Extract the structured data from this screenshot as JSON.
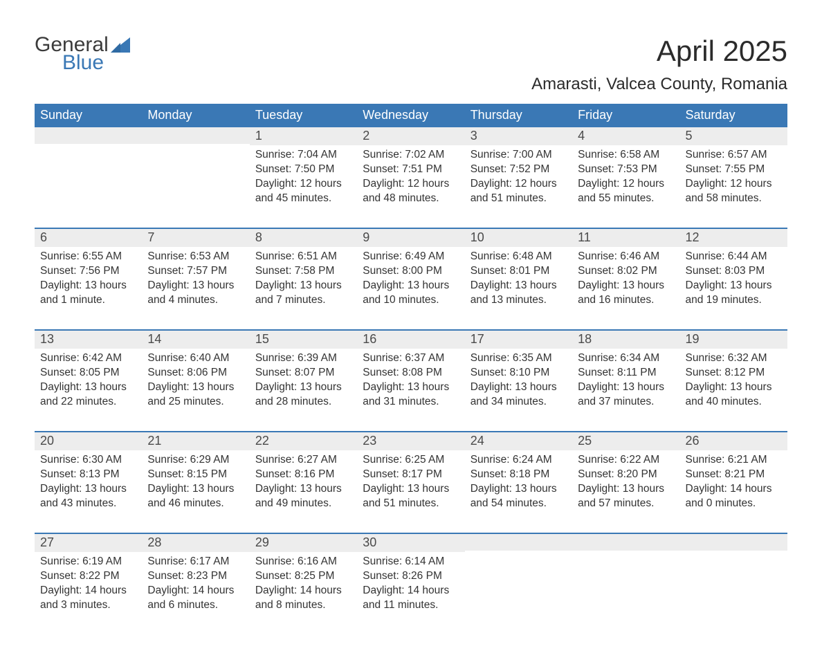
{
  "logo": {
    "word1": "General",
    "word2": "Blue",
    "color1": "#3b3b3b",
    "color2": "#3a78b5"
  },
  "title": "April 2025",
  "location": "Amarasti, Valcea County, Romania",
  "colors": {
    "header_bg": "#3a78b5",
    "header_text": "#ffffff",
    "daynum_bg": "#ededed",
    "daynum_text": "#4a4a4a",
    "body_text": "#333333",
    "row_border": "#3a78b5",
    "page_bg": "#ffffff"
  },
  "day_headers": [
    "Sunday",
    "Monday",
    "Tuesday",
    "Wednesday",
    "Thursday",
    "Friday",
    "Saturday"
  ],
  "weeks": [
    [
      {
        "day": "",
        "sunrise": "",
        "sunset": "",
        "daylight1": "",
        "daylight2": "",
        "empty": true
      },
      {
        "day": "",
        "sunrise": "",
        "sunset": "",
        "daylight1": "",
        "daylight2": "",
        "empty": true
      },
      {
        "day": "1",
        "sunrise": "Sunrise: 7:04 AM",
        "sunset": "Sunset: 7:50 PM",
        "daylight1": "Daylight: 12 hours",
        "daylight2": "and 45 minutes."
      },
      {
        "day": "2",
        "sunrise": "Sunrise: 7:02 AM",
        "sunset": "Sunset: 7:51 PM",
        "daylight1": "Daylight: 12 hours",
        "daylight2": "and 48 minutes."
      },
      {
        "day": "3",
        "sunrise": "Sunrise: 7:00 AM",
        "sunset": "Sunset: 7:52 PM",
        "daylight1": "Daylight: 12 hours",
        "daylight2": "and 51 minutes."
      },
      {
        "day": "4",
        "sunrise": "Sunrise: 6:58 AM",
        "sunset": "Sunset: 7:53 PM",
        "daylight1": "Daylight: 12 hours",
        "daylight2": "and 55 minutes."
      },
      {
        "day": "5",
        "sunrise": "Sunrise: 6:57 AM",
        "sunset": "Sunset: 7:55 PM",
        "daylight1": "Daylight: 12 hours",
        "daylight2": "and 58 minutes."
      }
    ],
    [
      {
        "day": "6",
        "sunrise": "Sunrise: 6:55 AM",
        "sunset": "Sunset: 7:56 PM",
        "daylight1": "Daylight: 13 hours",
        "daylight2": "and 1 minute."
      },
      {
        "day": "7",
        "sunrise": "Sunrise: 6:53 AM",
        "sunset": "Sunset: 7:57 PM",
        "daylight1": "Daylight: 13 hours",
        "daylight2": "and 4 minutes."
      },
      {
        "day": "8",
        "sunrise": "Sunrise: 6:51 AM",
        "sunset": "Sunset: 7:58 PM",
        "daylight1": "Daylight: 13 hours",
        "daylight2": "and 7 minutes."
      },
      {
        "day": "9",
        "sunrise": "Sunrise: 6:49 AM",
        "sunset": "Sunset: 8:00 PM",
        "daylight1": "Daylight: 13 hours",
        "daylight2": "and 10 minutes."
      },
      {
        "day": "10",
        "sunrise": "Sunrise: 6:48 AM",
        "sunset": "Sunset: 8:01 PM",
        "daylight1": "Daylight: 13 hours",
        "daylight2": "and 13 minutes."
      },
      {
        "day": "11",
        "sunrise": "Sunrise: 6:46 AM",
        "sunset": "Sunset: 8:02 PM",
        "daylight1": "Daylight: 13 hours",
        "daylight2": "and 16 minutes."
      },
      {
        "day": "12",
        "sunrise": "Sunrise: 6:44 AM",
        "sunset": "Sunset: 8:03 PM",
        "daylight1": "Daylight: 13 hours",
        "daylight2": "and 19 minutes."
      }
    ],
    [
      {
        "day": "13",
        "sunrise": "Sunrise: 6:42 AM",
        "sunset": "Sunset: 8:05 PM",
        "daylight1": "Daylight: 13 hours",
        "daylight2": "and 22 minutes."
      },
      {
        "day": "14",
        "sunrise": "Sunrise: 6:40 AM",
        "sunset": "Sunset: 8:06 PM",
        "daylight1": "Daylight: 13 hours",
        "daylight2": "and 25 minutes."
      },
      {
        "day": "15",
        "sunrise": "Sunrise: 6:39 AM",
        "sunset": "Sunset: 8:07 PM",
        "daylight1": "Daylight: 13 hours",
        "daylight2": "and 28 minutes."
      },
      {
        "day": "16",
        "sunrise": "Sunrise: 6:37 AM",
        "sunset": "Sunset: 8:08 PM",
        "daylight1": "Daylight: 13 hours",
        "daylight2": "and 31 minutes."
      },
      {
        "day": "17",
        "sunrise": "Sunrise: 6:35 AM",
        "sunset": "Sunset: 8:10 PM",
        "daylight1": "Daylight: 13 hours",
        "daylight2": "and 34 minutes."
      },
      {
        "day": "18",
        "sunrise": "Sunrise: 6:34 AM",
        "sunset": "Sunset: 8:11 PM",
        "daylight1": "Daylight: 13 hours",
        "daylight2": "and 37 minutes."
      },
      {
        "day": "19",
        "sunrise": "Sunrise: 6:32 AM",
        "sunset": "Sunset: 8:12 PM",
        "daylight1": "Daylight: 13 hours",
        "daylight2": "and 40 minutes."
      }
    ],
    [
      {
        "day": "20",
        "sunrise": "Sunrise: 6:30 AM",
        "sunset": "Sunset: 8:13 PM",
        "daylight1": "Daylight: 13 hours",
        "daylight2": "and 43 minutes."
      },
      {
        "day": "21",
        "sunrise": "Sunrise: 6:29 AM",
        "sunset": "Sunset: 8:15 PM",
        "daylight1": "Daylight: 13 hours",
        "daylight2": "and 46 minutes."
      },
      {
        "day": "22",
        "sunrise": "Sunrise: 6:27 AM",
        "sunset": "Sunset: 8:16 PM",
        "daylight1": "Daylight: 13 hours",
        "daylight2": "and 49 minutes."
      },
      {
        "day": "23",
        "sunrise": "Sunrise: 6:25 AM",
        "sunset": "Sunset: 8:17 PM",
        "daylight1": "Daylight: 13 hours",
        "daylight2": "and 51 minutes."
      },
      {
        "day": "24",
        "sunrise": "Sunrise: 6:24 AM",
        "sunset": "Sunset: 8:18 PM",
        "daylight1": "Daylight: 13 hours",
        "daylight2": "and 54 minutes."
      },
      {
        "day": "25",
        "sunrise": "Sunrise: 6:22 AM",
        "sunset": "Sunset: 8:20 PM",
        "daylight1": "Daylight: 13 hours",
        "daylight2": "and 57 minutes."
      },
      {
        "day": "26",
        "sunrise": "Sunrise: 6:21 AM",
        "sunset": "Sunset: 8:21 PM",
        "daylight1": "Daylight: 14 hours",
        "daylight2": "and 0 minutes."
      }
    ],
    [
      {
        "day": "27",
        "sunrise": "Sunrise: 6:19 AM",
        "sunset": "Sunset: 8:22 PM",
        "daylight1": "Daylight: 14 hours",
        "daylight2": "and 3 minutes."
      },
      {
        "day": "28",
        "sunrise": "Sunrise: 6:17 AM",
        "sunset": "Sunset: 8:23 PM",
        "daylight1": "Daylight: 14 hours",
        "daylight2": "and 6 minutes."
      },
      {
        "day": "29",
        "sunrise": "Sunrise: 6:16 AM",
        "sunset": "Sunset: 8:25 PM",
        "daylight1": "Daylight: 14 hours",
        "daylight2": "and 8 minutes."
      },
      {
        "day": "30",
        "sunrise": "Sunrise: 6:14 AM",
        "sunset": "Sunset: 8:26 PM",
        "daylight1": "Daylight: 14 hours",
        "daylight2": "and 11 minutes."
      },
      {
        "day": "",
        "sunrise": "",
        "sunset": "",
        "daylight1": "",
        "daylight2": "",
        "empty": true
      },
      {
        "day": "",
        "sunrise": "",
        "sunset": "",
        "daylight1": "",
        "daylight2": "",
        "empty": true
      },
      {
        "day": "",
        "sunrise": "",
        "sunset": "",
        "daylight1": "",
        "daylight2": "",
        "empty": true
      }
    ]
  ]
}
